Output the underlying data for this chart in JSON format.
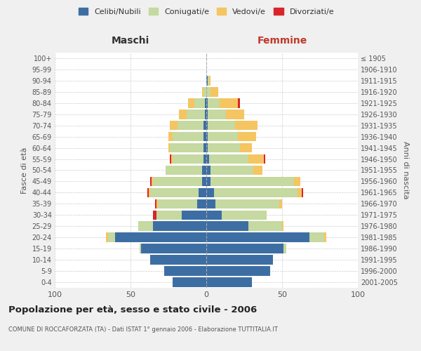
{
  "age_groups": [
    "0-4",
    "5-9",
    "10-14",
    "15-19",
    "20-24",
    "25-29",
    "30-34",
    "35-39",
    "40-44",
    "45-49",
    "50-54",
    "55-59",
    "60-64",
    "65-69",
    "70-74",
    "75-79",
    "80-84",
    "85-89",
    "90-94",
    "95-99",
    "100+"
  ],
  "birth_years": [
    "2001-2005",
    "1996-2000",
    "1991-1995",
    "1986-1990",
    "1981-1985",
    "1976-1980",
    "1971-1975",
    "1966-1970",
    "1961-1965",
    "1956-1960",
    "1951-1955",
    "1946-1950",
    "1941-1945",
    "1936-1940",
    "1931-1935",
    "1926-1930",
    "1921-1925",
    "1916-1920",
    "1911-1915",
    "1906-1910",
    "≤ 1905"
  ],
  "males": {
    "celibe": [
      22,
      28,
      37,
      43,
      60,
      35,
      16,
      6,
      5,
      3,
      3,
      2,
      2,
      2,
      2,
      1,
      1,
      0,
      0,
      0,
      0
    ],
    "coniugato": [
      0,
      0,
      0,
      1,
      5,
      10,
      17,
      26,
      32,
      32,
      24,
      20,
      22,
      20,
      17,
      12,
      7,
      2,
      0,
      0,
      0
    ],
    "vedovo": [
      0,
      0,
      0,
      0,
      1,
      0,
      0,
      1,
      1,
      1,
      0,
      1,
      1,
      3,
      5,
      5,
      4,
      1,
      0,
      0,
      0
    ],
    "divorziato": [
      0,
      0,
      0,
      0,
      0,
      0,
      2,
      1,
      1,
      1,
      0,
      1,
      0,
      0,
      0,
      0,
      0,
      0,
      0,
      0,
      0
    ]
  },
  "females": {
    "nubile": [
      30,
      42,
      44,
      51,
      68,
      28,
      10,
      6,
      5,
      3,
      3,
      2,
      1,
      1,
      1,
      1,
      1,
      0,
      1,
      0,
      0
    ],
    "coniugata": [
      0,
      0,
      0,
      2,
      10,
      22,
      30,
      42,
      55,
      55,
      28,
      26,
      21,
      20,
      18,
      12,
      8,
      3,
      1,
      0,
      0
    ],
    "vedova": [
      0,
      0,
      0,
      0,
      1,
      1,
      0,
      2,
      3,
      4,
      6,
      10,
      8,
      12,
      15,
      12,
      12,
      5,
      1,
      0,
      0
    ],
    "divorziata": [
      0,
      0,
      0,
      0,
      0,
      0,
      0,
      0,
      1,
      0,
      0,
      1,
      0,
      0,
      0,
      0,
      1,
      0,
      0,
      0,
      0
    ]
  },
  "colors": {
    "celibe": "#3d6ea3",
    "coniugato": "#c5d9a0",
    "vedovo": "#f5c561",
    "divorziato": "#d9252a"
  },
  "title": "Popolazione per età, sesso e stato civile - 2006",
  "subtitle": "COMUNE DI ROCCAFORZATA (TA) - Dati ISTAT 1° gennaio 2006 - Elaborazione TUTTITALIA.IT",
  "xlabel_left": "Maschi",
  "xlabel_right": "Femmine",
  "ylabel_left": "Fasce di età",
  "ylabel_right": "Anni di nascita",
  "xlim": 100,
  "background_color": "#f0f0f0",
  "plot_bg_color": "#ffffff",
  "legend_labels": [
    "Celibi/Nubili",
    "Coniugati/e",
    "Vedovi/e",
    "Divorziati/e"
  ]
}
